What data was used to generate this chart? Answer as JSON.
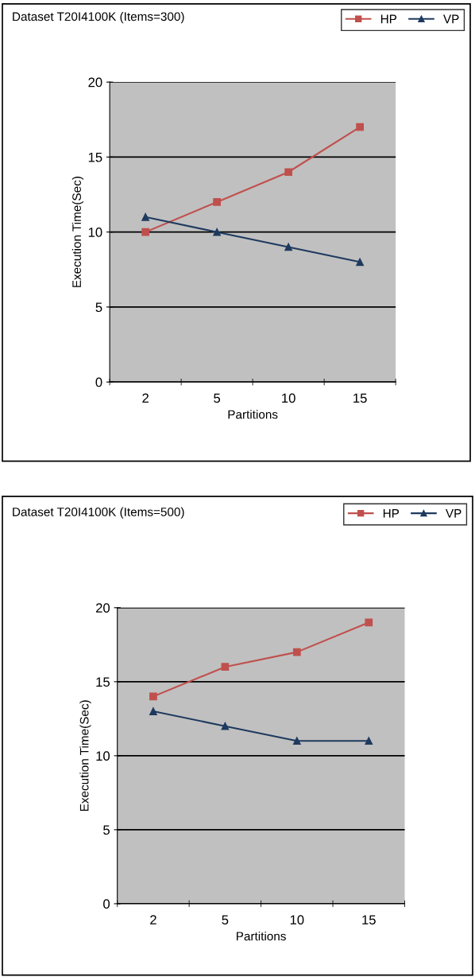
{
  "chart_data": [
    {
      "type": "line",
      "title": "Dataset T20I4100K (Items=300)",
      "xlabel": "Partitions",
      "ylabel": "Execution Time(Sec)",
      "categories": [
        "2",
        "5",
        "10",
        "15"
      ],
      "ylim": [
        0,
        20
      ],
      "yticks": [
        0,
        5,
        10,
        15,
        20
      ],
      "grid": "y",
      "legend": "top right",
      "series": [
        {
          "name": "HP",
          "color": "#c0504d",
          "marker": "square",
          "values": [
            10,
            12,
            14,
            17
          ]
        },
        {
          "name": "VP",
          "color": "#1f3a5f",
          "marker": "triangle",
          "values": [
            11,
            10,
            9,
            8
          ]
        }
      ]
    },
    {
      "type": "line",
      "title": "Dataset T20I4100K (Items=500)",
      "xlabel": "Partitions",
      "ylabel": "Execution Time(Sec)",
      "categories": [
        "2",
        "5",
        "10",
        "15"
      ],
      "ylim": [
        0,
        20
      ],
      "yticks": [
        0,
        5,
        10,
        15,
        20
      ],
      "grid": "y",
      "legend": "top right",
      "series": [
        {
          "name": "HP",
          "color": "#c0504d",
          "marker": "square",
          "values": [
            14,
            16,
            17,
            19
          ]
        },
        {
          "name": "VP",
          "color": "#1f3a5f",
          "marker": "triangle",
          "values": [
            13,
            12,
            11,
            11
          ]
        }
      ]
    }
  ]
}
